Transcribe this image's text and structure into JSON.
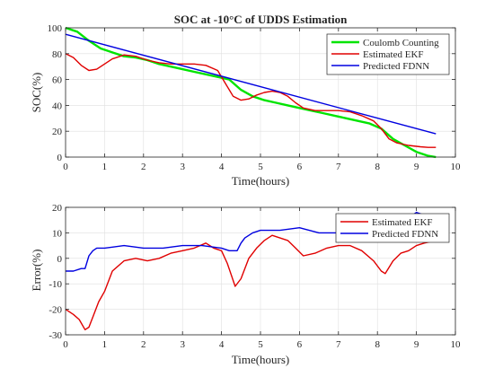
{
  "chart_data": [
    {
      "type": "line",
      "title": "SOC at -10°C of UDDS Estimation",
      "xlabel": "Time(hours)",
      "ylabel": "SOC(%)",
      "xlim": [
        0,
        10
      ],
      "ylim": [
        0,
        100
      ],
      "xticks": [
        "0",
        "1",
        "2",
        "3",
        "4",
        "5",
        "6",
        "7",
        "8",
        "9",
        "10"
      ],
      "yticks": [
        "0",
        "20",
        "40",
        "60",
        "80",
        "100"
      ],
      "grid": true,
      "legend_position": "top-right",
      "series": [
        {
          "name": "Coulomb Counting",
          "color": "#00e400",
          "x": [
            0,
            0.3,
            0.6,
            0.9,
            1.2,
            1.5,
            1.8,
            2.1,
            2.4,
            2.7,
            3.0,
            3.3,
            3.6,
            3.9,
            4.2,
            4.5,
            4.8,
            5.1,
            5.4,
            5.7,
            6.0,
            6.3,
            6.6,
            6.9,
            7.2,
            7.5,
            7.8,
            8.1,
            8.4,
            8.7,
            9.0,
            9.3,
            9.5
          ],
          "y": [
            100,
            97,
            90,
            84,
            81,
            78,
            77,
            75,
            72,
            70,
            68,
            66,
            64,
            62,
            60,
            52,
            47,
            44,
            42,
            40,
            38,
            36,
            34,
            32,
            30,
            28,
            26,
            22,
            14,
            9,
            4,
            1,
            0
          ]
        },
        {
          "name": "Estimated EKF",
          "color": "#e00000",
          "x": [
            0,
            0.2,
            0.4,
            0.6,
            0.8,
            1.0,
            1.2,
            1.5,
            1.8,
            2.1,
            2.4,
            2.7,
            3.0,
            3.3,
            3.6,
            3.9,
            4.1,
            4.3,
            4.5,
            4.7,
            4.9,
            5.1,
            5.3,
            5.5,
            5.7,
            5.9,
            6.1,
            6.4,
            6.7,
            7.0,
            7.3,
            7.6,
            7.9,
            8.1,
            8.3,
            8.5,
            8.8,
            9.1,
            9.3,
            9.5
          ],
          "y": [
            80,
            77,
            71,
            67,
            68,
            72,
            76,
            79,
            78,
            75,
            73,
            72,
            72,
            72,
            71,
            67,
            57,
            47,
            44,
            45,
            48,
            50,
            51,
            50,
            47,
            42,
            38,
            36,
            36,
            36,
            35,
            32,
            28,
            22,
            14,
            11,
            9,
            8,
            7.5,
            7.5
          ]
        },
        {
          "name": "Predicted FDNN",
          "color": "#0000e0",
          "x": [
            0,
            9.5
          ],
          "y": [
            95,
            18
          ]
        }
      ]
    },
    {
      "type": "line",
      "title": "",
      "xlabel": "Time(hours)",
      "ylabel": "Error(%)",
      "xlim": [
        0,
        10
      ],
      "ylim": [
        -30,
        20
      ],
      "xticks": [
        "0",
        "1",
        "2",
        "3",
        "4",
        "5",
        "6",
        "7",
        "8",
        "9",
        "10"
      ],
      "yticks": [
        "-30",
        "-20",
        "-10",
        "0",
        "10",
        "20"
      ],
      "grid": true,
      "legend_position": "top-right",
      "series": [
        {
          "name": "Estimated EKF",
          "color": "#e00000",
          "x": [
            0,
            0.2,
            0.35,
            0.5,
            0.6,
            0.7,
            0.85,
            1.0,
            1.2,
            1.5,
            1.8,
            2.1,
            2.4,
            2.7,
            3.0,
            3.3,
            3.6,
            3.8,
            4.0,
            4.15,
            4.35,
            4.5,
            4.7,
            4.9,
            5.1,
            5.3,
            5.5,
            5.7,
            5.9,
            6.1,
            6.4,
            6.7,
            7.0,
            7.3,
            7.6,
            7.9,
            8.1,
            8.2,
            8.4,
            8.6,
            8.8,
            9.0,
            9.2,
            9.5
          ],
          "y": [
            -20,
            -22,
            -24,
            -28,
            -27,
            -23,
            -17,
            -13,
            -5,
            -1,
            0,
            -1,
            0,
            2,
            3,
            4,
            6,
            4,
            3,
            -2,
            -11,
            -8,
            0,
            4,
            7,
            9,
            8,
            7,
            4,
            1,
            2,
            4,
            5,
            5,
            3,
            -1,
            -5,
            -6,
            -1,
            2,
            3,
            5,
            6,
            7
          ]
        },
        {
          "name": "Predicted FDNN",
          "color": "#0000e0",
          "x": [
            0,
            0.2,
            0.4,
            0.5,
            0.6,
            0.7,
            0.8,
            1.0,
            1.5,
            2.0,
            2.5,
            3.0,
            3.5,
            4.0,
            4.2,
            4.4,
            4.5,
            4.6,
            4.8,
            5.0,
            5.5,
            6.0,
            6.5,
            7.0,
            7.5,
            8.0,
            8.5,
            8.8,
            9.0,
            9.2,
            9.5
          ],
          "y": [
            -5,
            -5,
            -4,
            -4,
            1,
            3,
            4,
            4,
            5,
            4,
            4,
            5,
            5,
            4,
            3,
            3,
            6,
            8,
            10,
            11,
            11,
            12,
            10,
            10,
            10,
            13,
            15,
            16,
            18,
            17,
            17
          ]
        }
      ]
    }
  ]
}
